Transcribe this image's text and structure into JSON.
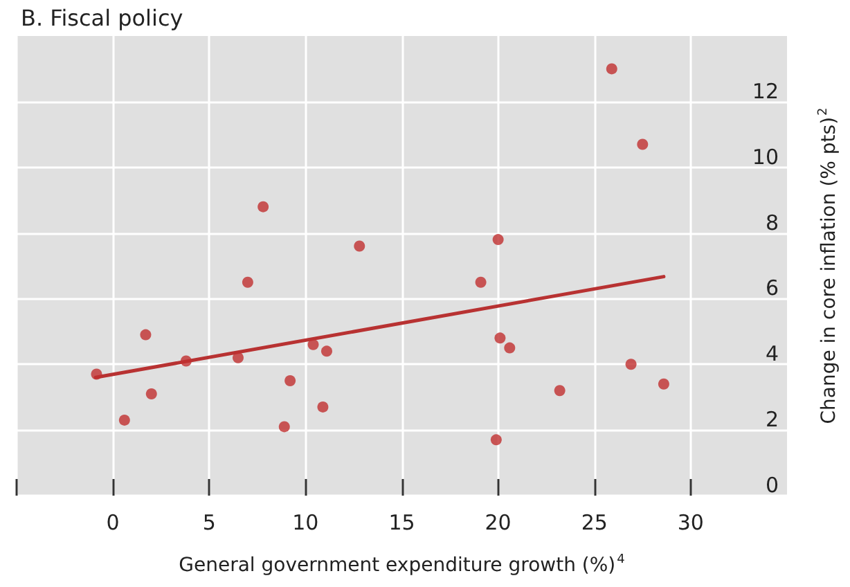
{
  "chart_data": {
    "type": "scatter",
    "title": "B. Fiscal policy",
    "xlabel": "General government expenditure growth (%)$^{4}$",
    "ylabel": "Change in core inflation (% pts)$^{2}$",
    "xlim": [
      -5,
      35
    ],
    "xticks": [
      {
        "value": -5,
        "label": null
      },
      0,
      5,
      10,
      15,
      20,
      25,
      30
    ],
    "ylim": [
      0,
      14
    ],
    "yticks": [
      0,
      2,
      4,
      6,
      8,
      10,
      12
    ],
    "grid": true,
    "marker": "circle",
    "series": [
      {
        "color": "#c0302f",
        "x": [
          7.8,
          12.8,
          7.0,
          25.9,
          27.5,
          20.0,
          19.1,
          -0.85,
          1.7,
          2.0,
          0.6,
          3.8,
          6.5,
          10.4,
          11.1,
          9.2,
          10.9,
          8.9,
          20.1,
          20.6,
          26.9,
          23.2,
          28.6,
          19.9
        ],
        "values": [
          8.8,
          7.6,
          6.5,
          13.0,
          10.7,
          7.8,
          6.5,
          3.7,
          4.9,
          3.1,
          2.3,
          4.1,
          4.2,
          4.6,
          4.4,
          3.5,
          2.7,
          2.1,
          4.8,
          4.5,
          4.0,
          3.2,
          3.4,
          1.7
        ]
      },
      {
        "type": "line",
        "color": "#b83232",
        "marker": "none",
        "x": [
          -0.9,
          28.6
        ],
        "values": [
          3.6,
          6.67
        ]
      }
    ]
  }
}
